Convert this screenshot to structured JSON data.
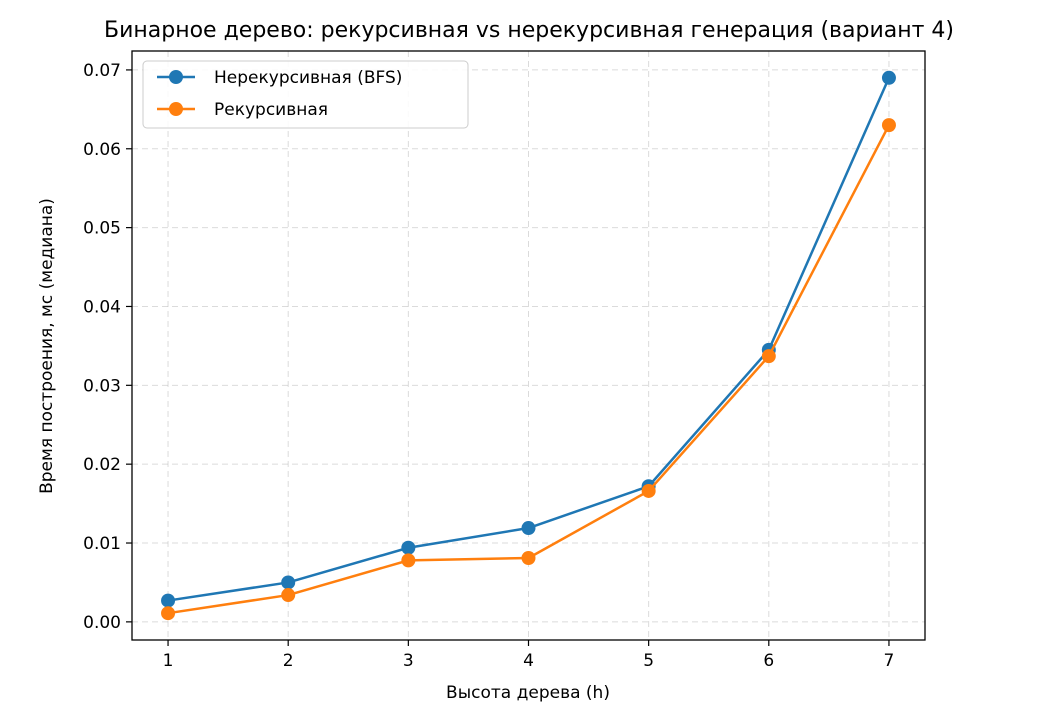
{
  "chart_data": {
    "type": "line",
    "title": "Бинарное дерево: рекурсивная vs нерекурсивная генерация (вариант 4)",
    "xlabel": "Высота дерева (h)",
    "ylabel": "Время построения, мс (медиана)",
    "x": [
      1,
      2,
      3,
      4,
      5,
      6,
      7
    ],
    "xticks": [
      "1",
      "2",
      "3",
      "4",
      "5",
      "6",
      "7"
    ],
    "yticks": [
      "0.00",
      "0.01",
      "0.02",
      "0.03",
      "0.04",
      "0.05",
      "0.06",
      "0.07"
    ],
    "xlim": [
      0.7,
      7.3
    ],
    "ylim": [
      -0.0023,
      0.0724
    ],
    "grid": true,
    "legend_position": "top-left",
    "series": [
      {
        "name": "Нерекурсивная (BFS)",
        "color": "#1f77b4",
        "marker": "circle",
        "values": [
          0.0027,
          0.005,
          0.0094,
          0.0119,
          0.0172,
          0.0345,
          0.069
        ]
      },
      {
        "name": "Рекурсивная",
        "color": "#ff7f0e",
        "marker": "circle",
        "values": [
          0.0011,
          0.0034,
          0.0078,
          0.0081,
          0.0166,
          0.0337,
          0.063
        ]
      }
    ]
  }
}
